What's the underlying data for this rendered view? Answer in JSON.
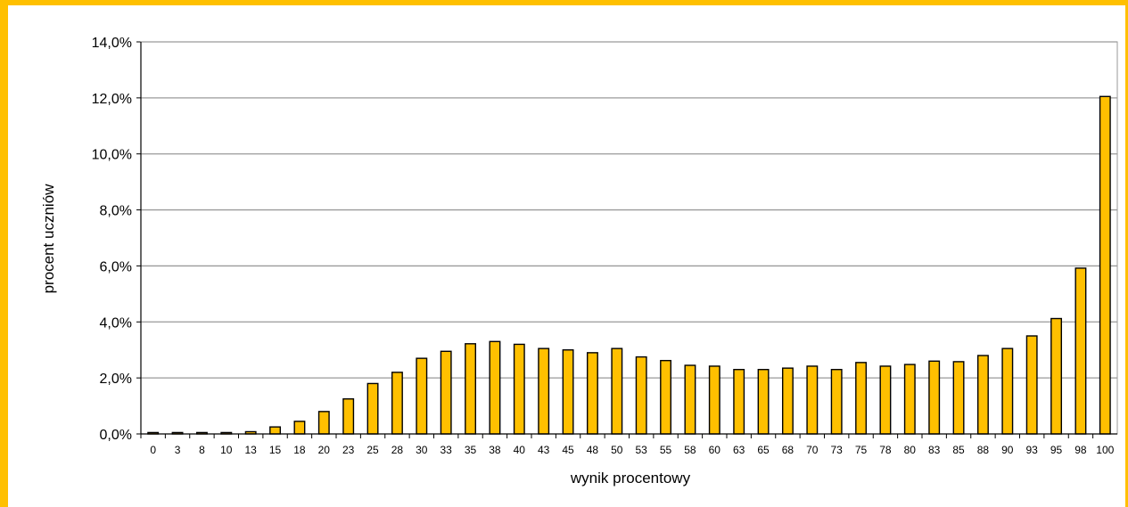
{
  "colors": {
    "frame": "#FFC000",
    "bar_fill": "#FFC000",
    "bar_edge": "#000000",
    "gridline": "#9a9a9a",
    "axis": "#000000"
  },
  "chart_data": {
    "type": "bar",
    "title": "",
    "xlabel": "wynik procentowy",
    "ylabel": "procent uczniów",
    "ylim": [
      0,
      14
    ],
    "yticks": [
      "0,0%",
      "2,0%",
      "4,0%",
      "6,0%",
      "8,0%",
      "10,0%",
      "12,0%",
      "14,0%"
    ],
    "grid": true,
    "legend": "none",
    "categories": [
      "0",
      "3",
      "8",
      "10",
      "13",
      "15",
      "18",
      "20",
      "23",
      "25",
      "28",
      "30",
      "33",
      "35",
      "38",
      "40",
      "43",
      "45",
      "48",
      "50",
      "53",
      "55",
      "58",
      "60",
      "63",
      "65",
      "68",
      "70",
      "73",
      "75",
      "78",
      "80",
      "83",
      "85",
      "88",
      "90",
      "93",
      "95",
      "98",
      "100"
    ],
    "values": [
      0.05,
      0.05,
      0.05,
      0.05,
      0.08,
      0.25,
      0.45,
      0.8,
      1.25,
      1.8,
      2.2,
      2.7,
      2.95,
      3.22,
      3.3,
      3.2,
      3.05,
      3.0,
      2.9,
      3.05,
      2.75,
      2.62,
      2.45,
      2.42,
      2.3,
      2.3,
      2.35,
      2.42,
      2.3,
      2.55,
      2.42,
      2.48,
      2.6,
      2.58,
      2.8,
      3.05,
      3.5,
      4.12,
      5.92,
      12.05
    ]
  }
}
